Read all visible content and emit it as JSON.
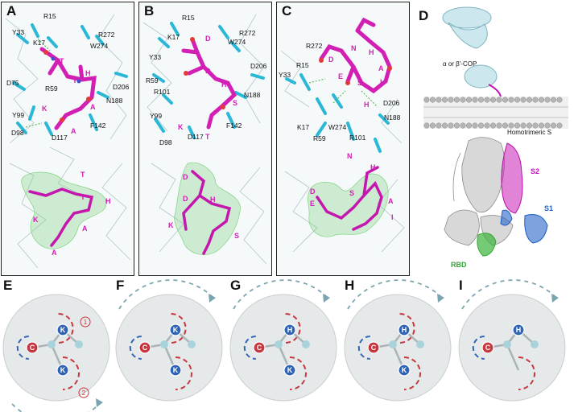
{
  "panels": {
    "A": {
      "letter": "A",
      "residues": [
        "R15",
        "Y33",
        "K17",
        "R272",
        "W274",
        "D206",
        "D75",
        "R59",
        "N188",
        "Y99",
        "F142",
        "D98",
        "D117"
      ],
      "peptide_top": [
        "T",
        "Y",
        "H",
        "A",
        "A",
        "K"
      ],
      "peptide_bottom": [
        "T",
        "Y",
        "H",
        "K",
        "A",
        "A"
      ]
    },
    "B": {
      "letter": "B",
      "residues": [
        "R15",
        "K17",
        "W274",
        "R272",
        "Y33",
        "D206",
        "R59",
        "R101",
        "N188",
        "Y99",
        "F142",
        "D98",
        "D117"
      ],
      "peptide_top": [
        "D",
        "D",
        "H",
        "S",
        "K",
        "T"
      ],
      "peptide_bottom": [
        "D",
        "D",
        "H",
        "K",
        "S"
      ]
    },
    "C": {
      "letter": "C",
      "residues": [
        "R272",
        "R15",
        "Y33",
        "D206",
        "N188",
        "K17",
        "W274",
        "R59",
        "R101"
      ],
      "peptide_top": [
        "D",
        "E",
        "S",
        "N",
        "H",
        "A",
        "I",
        "H"
      ],
      "peptide_bottom": [
        "N",
        "D",
        "E",
        "S",
        "H",
        "A",
        "I"
      ]
    },
    "D": {
      "letter": "D",
      "cop_label": "α or β′-COP",
      "membrane_label": "Homotrimeric S",
      "s2_label": "S2",
      "s1_label": "S1",
      "rbd_label": "RBD"
    }
  },
  "bottom_panels": [
    {
      "letter": "E",
      "labels": [
        "C",
        "K",
        "K"
      ],
      "numbers": [
        "1",
        "2"
      ]
    },
    {
      "letter": "F",
      "labels": [
        "C",
        "K",
        "K"
      ]
    },
    {
      "letter": "G",
      "labels": [
        "C",
        "H",
        "K"
      ]
    },
    {
      "letter": "H",
      "labels": [
        "C",
        "H",
        "K"
      ]
    },
    {
      "letter": "I",
      "labels": [
        "C",
        "H"
      ]
    }
  ],
  "colors": {
    "peptide": "#d21fb4",
    "protein": "#2bb7d6",
    "density": "#7bd07b",
    "circle_fill": "#e6e9ea",
    "red": "#c8373f",
    "blue": "#2f63b3",
    "node": "#a9d3dc"
  }
}
